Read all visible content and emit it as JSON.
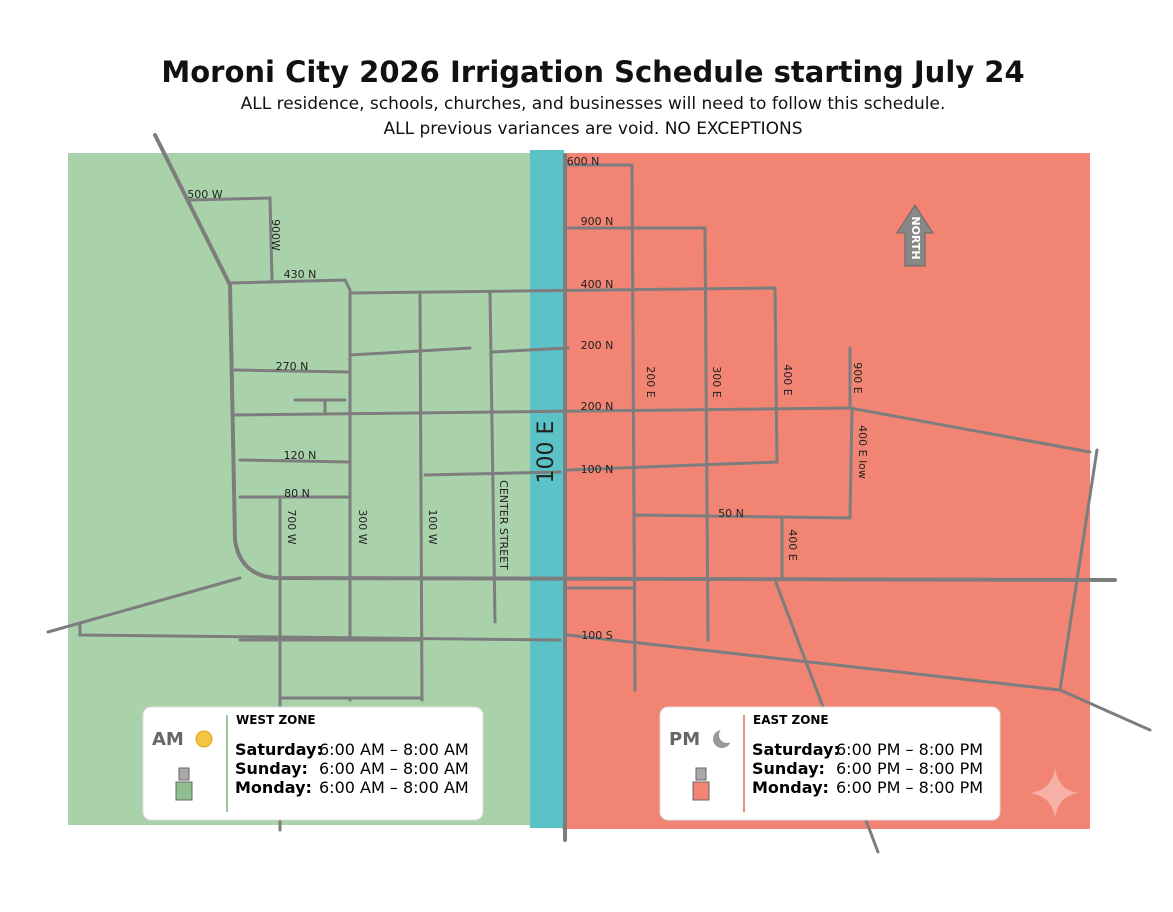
{
  "header": {
    "title": "Moroni City 2026 Irrigation Schedule starting July 24",
    "subtitle_lines": [
      "ALL residence, schools, churches, and businesses will need to follow this schedule.",
      "ALL previous variances are void.  NO EXCEPTIONS"
    ]
  },
  "map": {
    "divider_street": "100 E",
    "north_label": "NORTH",
    "streets": [
      "500 W",
      "900W",
      "430 N",
      "270 N",
      "120 N",
      "80 N",
      "700 W",
      "300 W",
      "100 W",
      "CENTER STREET",
      "600 N",
      "900 N",
      "400 N",
      "200 N",
      "200 N",
      "100 N",
      "50 N",
      "100 S",
      "200 E",
      "300 E",
      "400 E",
      "900 E",
      "400 E low",
      "400 E"
    ]
  },
  "zones": [
    {
      "badge": "AM",
      "name": "WEST ZONE",
      "rows": [
        [
          "Saturday:",
          "6:00 AM – 8:00 AM"
        ],
        [
          "Sunday:",
          "6:00 AM – 8:00 AM"
        ],
        [
          "Monday:",
          "6:00 AM – 8:00 AM"
        ]
      ]
    },
    {
      "badge": "PM",
      "name": "EAST ZONE",
      "rows": [
        [
          "Saturday:",
          "6:00 PM – 8:00 PM"
        ],
        [
          "Sunday:",
          "6:00 PM – 8:00 PM"
        ],
        [
          "Monday:",
          "6:00 PM – 8:00 PM"
        ]
      ]
    }
  ]
}
